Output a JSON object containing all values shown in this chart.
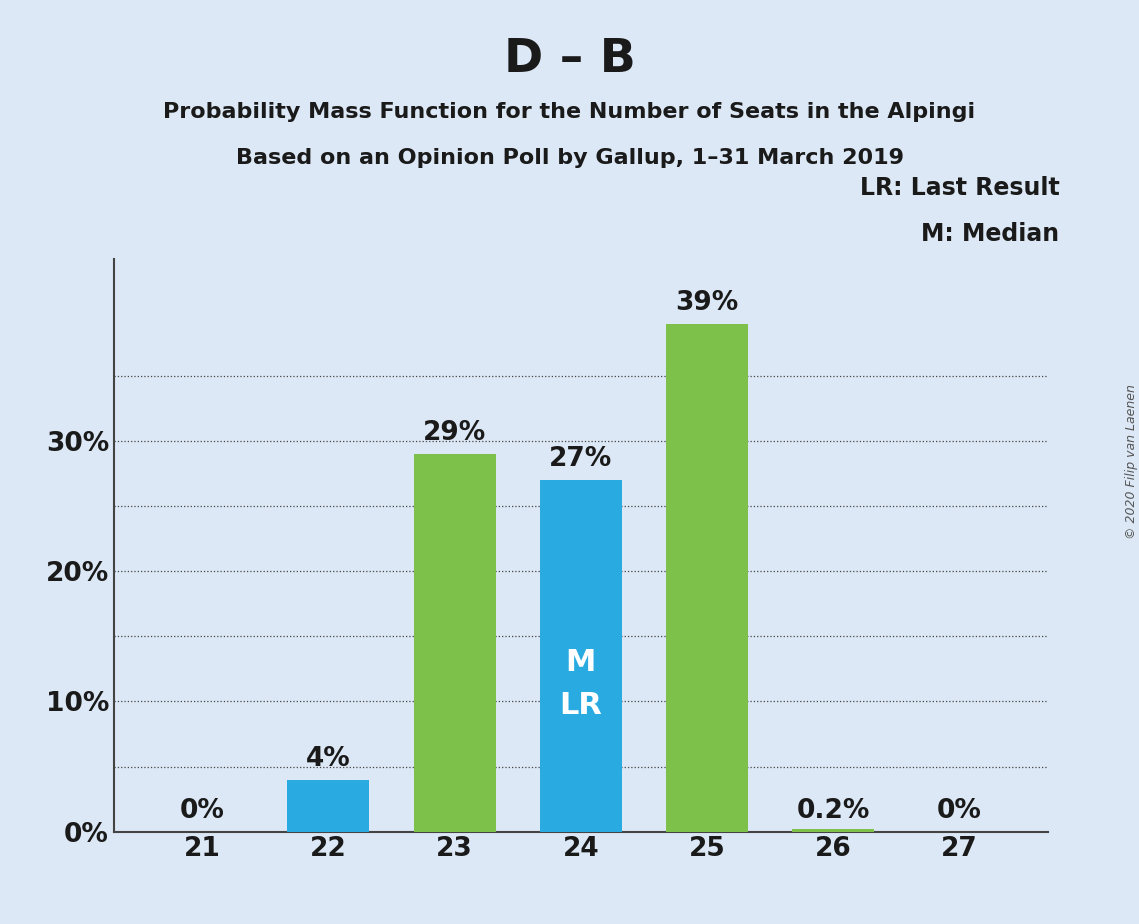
{
  "title_main": "D – B",
  "title_sub1": "Probability Mass Function for the Number of Seats in the Alpingi",
  "title_sub2": "Based on an Opinion Poll by Gallup, 1–31 March 2019",
  "copyright": "© 2020 Filip van Laenen",
  "categories": [
    21,
    22,
    23,
    24,
    25,
    26,
    27
  ],
  "values": [
    0.0,
    4.0,
    29.0,
    27.0,
    39.0,
    0.2,
    0.0
  ],
  "colors": [
    "#29abe2",
    "#29abe2",
    "#7dc14a",
    "#29abe2",
    "#7dc14a",
    "#7dc14a",
    "#7dc14a"
  ],
  "labels": [
    "0%",
    "4%",
    "29%",
    "27%",
    "39%",
    "0.2%",
    "0%"
  ],
  "bar_annotation_cat": 24,
  "bar_annotation_text": "M\nLR",
  "legend_text1": "LR: Last Result",
  "legend_text2": "M: Median",
  "background_color": "#dce8f5",
  "yticks": [
    0,
    10,
    20,
    30
  ],
  "ylim": [
    0,
    44
  ],
  "grid_dotted_at": [
    5,
    10,
    15,
    20,
    25,
    30,
    35
  ],
  "ylabel_format": "{}%",
  "grid_color": "#444444",
  "bar_width": 0.65,
  "title_fontsize": 34,
  "subtitle_fontsize": 16,
  "tick_fontsize": 19,
  "label_fontsize": 19,
  "annotation_fontsize": 22,
  "legend_fontsize": 17
}
